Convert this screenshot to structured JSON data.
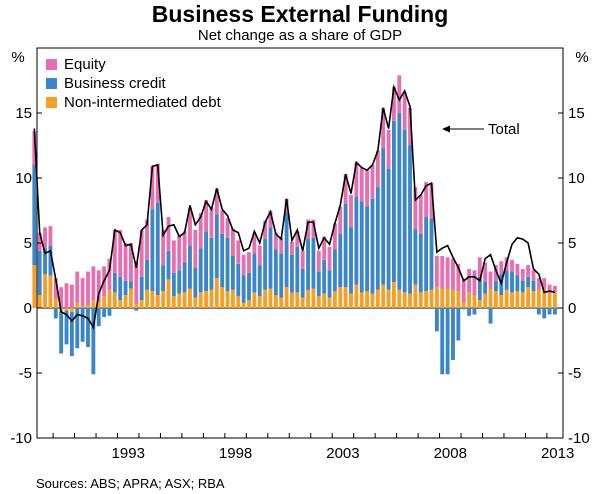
{
  "chart_data": {
    "type": "bar",
    "title": "Business External Funding",
    "subtitle": "Net change as a share of GDP",
    "ylabel_left": "%",
    "ylabel_right": "%",
    "ylim": [
      -10,
      20
    ],
    "yticks": [
      -10,
      -5,
      0,
      5,
      10,
      15
    ],
    "x_start_year": 1989.25,
    "x_end_year": 2013.75,
    "x_tick_labels": [
      "1993",
      "1998",
      "2003",
      "2008",
      "2013"
    ],
    "x_tick_years": [
      1993,
      1998,
      2003,
      2008,
      2013
    ],
    "quarter_start": "1989Q1",
    "source": "Sources: ABS; APRA; ASX; RBA",
    "annotation": "Total",
    "colors": {
      "equity": "#e66fb0",
      "credit": "#3b86c8",
      "debt": "#f4a028",
      "total": "#000000",
      "axis": "#000000"
    },
    "legend": [
      "Equity",
      "Business credit",
      "Non-intermediated debt"
    ],
    "series": [
      {
        "name": "Equity",
        "values": [
          2.6,
          1.4,
          1.6,
          1.5,
          1.6,
          1.6,
          1.9,
          1.8,
          2.4,
          2.2,
          2.6,
          2.6,
          2.5,
          2.3,
          2.4,
          3.3,
          3.6,
          2.9,
          3.0,
          3.2,
          3.6,
          3.1,
          3.3,
          3.0,
          2.7,
          2.6,
          2.5,
          2.7,
          2.4,
          2.8,
          2.9,
          2.7,
          2.4,
          2.3,
          2.0,
          1.8,
          1.5,
          2.1,
          1.8,
          1.6,
          1.6,
          1.5,
          1.5,
          1.4,
          1.3,
          1.3,
          1.2,
          1.1,
          1.0,
          1.2,
          1.4,
          1.5,
          1.4,
          1.6,
          1.8,
          1.8,
          2.0,
          2.1,
          2.3,
          2.5,
          2.6,
          2.6,
          2.8,
          2.6,
          2.8,
          3.1,
          3.0,
          2.6,
          2.9,
          2.9,
          2.9,
          3.2,
          3.0,
          2.7,
          2.7,
          2.4,
          2.5,
          2.4,
          2.4,
          2.1,
          1.8,
          1.8,
          1.9,
          1.5,
          1.5,
          1.3,
          1.2,
          1.0,
          1.0,
          0.9,
          0.9,
          0.9,
          0.9,
          0.8,
          0.9,
          0.8,
          0.6,
          0.5
        ]
      },
      {
        "name": "Business credit",
        "values": [
          7.7,
          3.4,
          2.0,
          2.3,
          -0.8,
          -3.2,
          -2.6,
          -3.4,
          -3.1,
          -2.6,
          -3.0,
          -5.1,
          -1.4,
          -0.7,
          -0.6,
          1.5,
          1.8,
          1.1,
          0.5,
          -0.2,
          1.8,
          2.3,
          6.3,
          7.1,
          2.0,
          2.2,
          1.8,
          1.8,
          2.3,
          3.3,
          2.3,
          3.4,
          4.6,
          4.0,
          4.9,
          4.1,
          4.1,
          2.6,
          2.5,
          2.1,
          2.1,
          3.0,
          2.4,
          3.9,
          4.7,
          3.5,
          3.4,
          5.7,
          2.9,
          3.5,
          2.2,
          3.9,
          3.9,
          1.9,
          2.6,
          2.1,
          3.2,
          4.1,
          6.4,
          5.1,
          6.8,
          7.0,
          6.5,
          7.3,
          7.9,
          10.5,
          9.3,
          12.4,
          13.6,
          12.5,
          11.4,
          4.3,
          4.5,
          5.7,
          5.5,
          -1.8,
          -5.1,
          -5.1,
          -4.0,
          -2.5,
          -0.1,
          -0.6,
          -0.5,
          1.8,
          0.9,
          -1.2,
          0.8,
          1.6,
          1.5,
          1.6,
          1.2,
          0.9,
          0.8,
          0.8,
          -0.5,
          -0.8,
          -0.5,
          -0.5
        ]
      },
      {
        "name": "Non-intermediated debt",
        "values": [
          3.3,
          1.0,
          2.6,
          2.5,
          0.7,
          -0.3,
          -0.2,
          -0.3,
          0.4,
          0.1,
          0.2,
          0.6,
          0.4,
          0.9,
          1.4,
          1.2,
          0.6,
          1.0,
          1.5,
          0.3,
          0.6,
          1.4,
          1.3,
          1.0,
          1.3,
          2.2,
          0.9,
          1.1,
          1.2,
          1.5,
          0.8,
          1.2,
          1.3,
          1.4,
          2.3,
          1.6,
          1.3,
          1.4,
          0.9,
          0.4,
          0.6,
          1.2,
          0.9,
          1.4,
          1.5,
          1.0,
          0.8,
          1.6,
          1.2,
          1.2,
          0.8,
          1.4,
          1.5,
          0.9,
          1.1,
          0.8,
          1.3,
          1.6,
          1.6,
          1.1,
          1.8,
          1.2,
          1.3,
          1.1,
          1.4,
          1.8,
          1.4,
          2.0,
          1.4,
          1.2,
          1.1,
          1.8,
          1.2,
          1.3,
          1.4,
          1.6,
          1.5,
          1.5,
          1.4,
          1.3,
          0.4,
          1.2,
          1.0,
          0.6,
          1.1,
          1.5,
          1.3,
          1.0,
          1.4,
          1.2,
          1.3,
          1.2,
          1.6,
          1.3,
          1.4,
          1.5,
          1.2,
          1.2
        ]
      },
      {
        "name": "Total",
        "values": [
          13.8,
          5.8,
          4.2,
          4.4,
          2.2,
          -0.3,
          -0.5,
          -1.0,
          -0.5,
          -0.6,
          -0.8,
          -1.5,
          1.1,
          2.1,
          2.9,
          6.0,
          5.8,
          4.8,
          4.9,
          3.1,
          6.0,
          6.4,
          10.9,
          11.0,
          5.6,
          6.3,
          6.4,
          5.5,
          5.8,
          7.9,
          6.4,
          7.0,
          8.2,
          7.6,
          9.2,
          7.6,
          7.1,
          6.0,
          5.8,
          4.4,
          4.6,
          5.9,
          5.0,
          6.6,
          7.4,
          5.7,
          5.3,
          8.4,
          5.2,
          6.0,
          4.4,
          6.6,
          6.6,
          4.6,
          5.4,
          4.9,
          6.5,
          7.9,
          10.3,
          8.8,
          11.2,
          10.8,
          10.6,
          11.0,
          12.1,
          15.4,
          13.8,
          17.0,
          16.0,
          16.7,
          15.5,
          8.3,
          8.7,
          9.4,
          9.6,
          4.3,
          4.6,
          4.8,
          3.9,
          3.1,
          2.1,
          2.4,
          2.4,
          2.1,
          3.8,
          4.1,
          2.9,
          1.9,
          3.5,
          4.9,
          5.4,
          5.3,
          5.0,
          3.0,
          2.6,
          1.2,
          1.3,
          1.2
        ]
      }
    ]
  }
}
